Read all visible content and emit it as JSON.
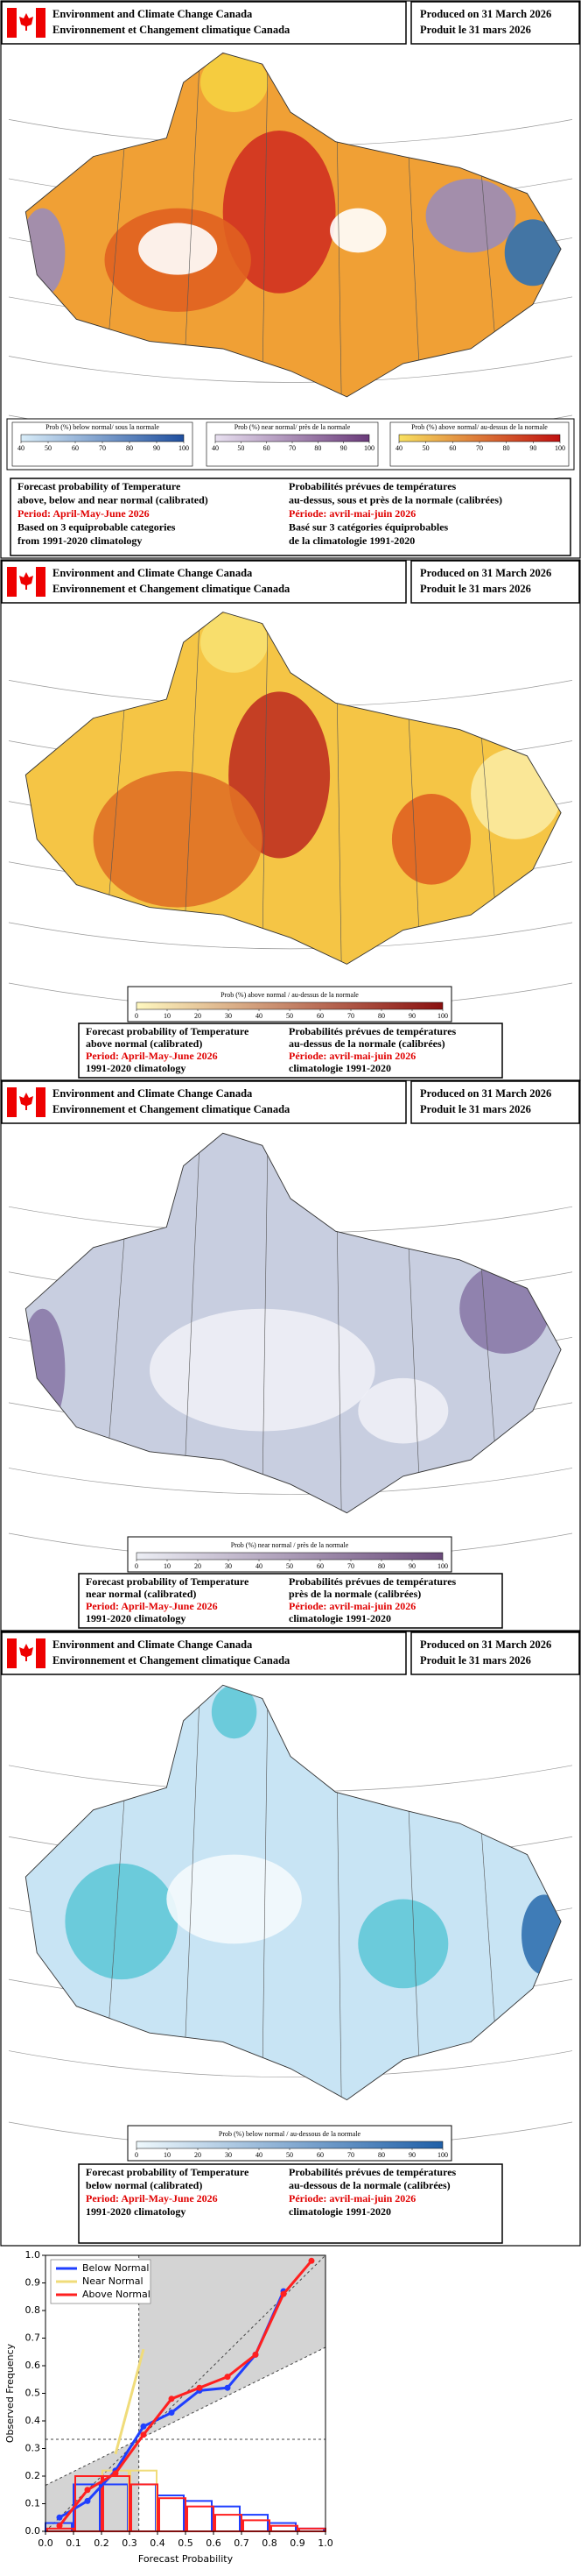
{
  "panels": [
    {
      "header": {
        "agency_en": "Environment and Climate Change Canada",
        "agency_fr": "Environnement et Changement climatique Canada",
        "produced_en": "Produced on 31 March 2026",
        "produced_fr": "Produit le 31 mars 2026"
      },
      "legends": [
        {
          "title": "Prob (%) below normal/ sous la normale",
          "ticks": [
            40,
            50,
            60,
            70,
            80,
            90,
            100
          ]
        },
        {
          "title": "Prob (%) near normal/ près de la normale",
          "ticks": [
            40,
            50,
            60,
            70,
            80,
            90,
            100
          ]
        },
        {
          "title": "Prob (%) above normal/ au-dessus de la normale",
          "ticks": [
            40,
            50,
            60,
            70,
            80,
            90,
            100
          ]
        }
      ],
      "footer": {
        "left": {
          "title": [
            "Forecast probability of Temperature",
            "above, below and near normal (calibrated)"
          ],
          "period": "Period: April-May-June 2026",
          "basis": [
            "Based on 3 equiprobable categories",
            "from 1991-2020 climatology"
          ]
        },
        "right": {
          "title": [
            "Probabilités prévues de températures",
            "au-dessus, sous et près de la normale (calibrées)"
          ],
          "period": "Période: avril-mai-juin 2026",
          "basis": [
            "Basé sur 3 catégories équiprobables",
            "de la climatologie 1991-2020"
          ]
        }
      }
    },
    {
      "header": {
        "agency_en": "Environment and Climate Change Canada",
        "agency_fr": "Environnement et Changement climatique Canada",
        "produced_en": "Produced on 31 March 2026",
        "produced_fr": "Produit le 31 mars 2026"
      },
      "legends": [
        {
          "title": "Prob (%) above normal / au-dessus de la normale",
          "ticks": [
            0,
            10,
            20,
            30,
            40,
            50,
            60,
            70,
            80,
            90,
            100
          ]
        }
      ],
      "footer": {
        "left": {
          "title": [
            "Forecast probability of Temperature",
            "above normal (calibrated)"
          ],
          "period": "Period: April-May-June 2026",
          "basis": [
            "1991-2020 climatology"
          ]
        },
        "right": {
          "title": [
            "Probabilités prévues de températures",
            "au-dessus de la normale (calibrées)"
          ],
          "period": "Période: avril-mai-juin 2026",
          "basis": [
            "climatologie 1991-2020"
          ]
        }
      }
    },
    {
      "header": {
        "agency_en": "Environment and Climate Change Canada",
        "agency_fr": "Environnement et Changement climatique Canada",
        "produced_en": "Produced on 31 March 2026",
        "produced_fr": "Produit le 31 mars 2026"
      },
      "legends": [
        {
          "title": "Prob (%) near normal / près de la normale",
          "ticks": [
            0,
            10,
            20,
            30,
            40,
            50,
            60,
            70,
            80,
            90,
            100
          ]
        }
      ],
      "footer": {
        "left": {
          "title": [
            "Forecast probability of Temperature",
            "near normal (calibrated)"
          ],
          "period": "Period: April-May-June 2026",
          "basis": [
            "1991-2020 climatology"
          ]
        },
        "right": {
          "title": [
            "Probabilités prévues de températures",
            "près de la normale (calibrées)"
          ],
          "period": "Période: avril-mai-juin 2026",
          "basis": [
            "climatologie 1991-2020"
          ]
        }
      }
    },
    {
      "header": {
        "agency_en": "Environment and Climate Change Canada",
        "agency_fr": "Environnement et Changement climatique Canada",
        "produced_en": "Produced on 31 March 2026",
        "produced_fr": "Produit le 31 mars 2026"
      },
      "legends": [
        {
          "title": "Prob (%) below normal / au-dessous de la normale",
          "ticks": [
            0,
            10,
            20,
            30,
            40,
            50,
            60,
            70,
            80,
            90,
            100
          ]
        }
      ],
      "footer": {
        "left": {
          "title": [
            "Forecast probability of Temperature",
            "below normal (calibrated)"
          ],
          "period": "Period: April-May-June 2026",
          "basis": [
            "1991-2020 climatology"
          ]
        },
        "right": {
          "title": [
            "Probabilités prévues de températures",
            "au-dessous de la normale (calibrées)"
          ],
          "period": "Période: avril-mai-juin 2026",
          "basis": [
            "climatologie 1991-2020"
          ]
        }
      }
    }
  ],
  "chart_data": {
    "type": "line",
    "xlabel": "Forecast Probability",
    "ylabel": "Observed Frequency",
    "xlim": [
      0,
      1
    ],
    "ylim": [
      0,
      1
    ],
    "xticks": [
      {
        "value": 0,
        "label": "0.0"
      },
      0.1,
      0.2,
      0.3,
      0.4,
      0.5,
      0.6,
      0.7,
      0.8,
      0.9,
      {
        "value": 1,
        "label": "1.0"
      }
    ],
    "yticks": [
      {
        "value": 0,
        "label": "0.0"
      },
      0.1,
      0.2,
      0.3,
      0.4,
      0.5,
      0.6,
      0.7,
      0.8,
      0.9,
      {
        "value": 1,
        "label": "1.0"
      }
    ],
    "x": [
      0.05,
      0.15,
      0.25,
      0.35,
      0.45,
      0.55,
      0.65,
      0.75,
      0.85,
      0.95
    ],
    "series": [
      {
        "name": "Below Normal",
        "color": "#1f3fff",
        "values": [
          0.05,
          0.11,
          0.22,
          0.38,
          0.43,
          0.51,
          0.52,
          0.64,
          0.87,
          null
        ]
      },
      {
        "name": "Near  Normal",
        "color": "#f0dc7a",
        "values": [
          null,
          null,
          0.28,
          0.66,
          null,
          null,
          null,
          null,
          null,
          null
        ]
      },
      {
        "name": "Above Normal",
        "color": "#ff2020",
        "values": [
          0.02,
          0.15,
          0.21,
          0.35,
          0.48,
          0.52,
          0.56,
          0.64,
          0.86,
          0.98
        ]
      }
    ],
    "histogram": [
      {
        "color": "#1f3fff",
        "values": [
          0.03,
          0.17,
          0.17,
          0.17,
          0.13,
          0.11,
          0.09,
          0.06,
          0.03,
          0.01
        ]
      },
      {
        "color": "#f0dc7a",
        "values": [
          0,
          0,
          0.22,
          0.22,
          0,
          0,
          0,
          0,
          0,
          0
        ]
      },
      {
        "color": "#ff2020",
        "values": [
          0.01,
          0.2,
          0.2,
          0.17,
          0.12,
          0.09,
          0.06,
          0.04,
          0.02,
          0.01
        ]
      }
    ]
  }
}
